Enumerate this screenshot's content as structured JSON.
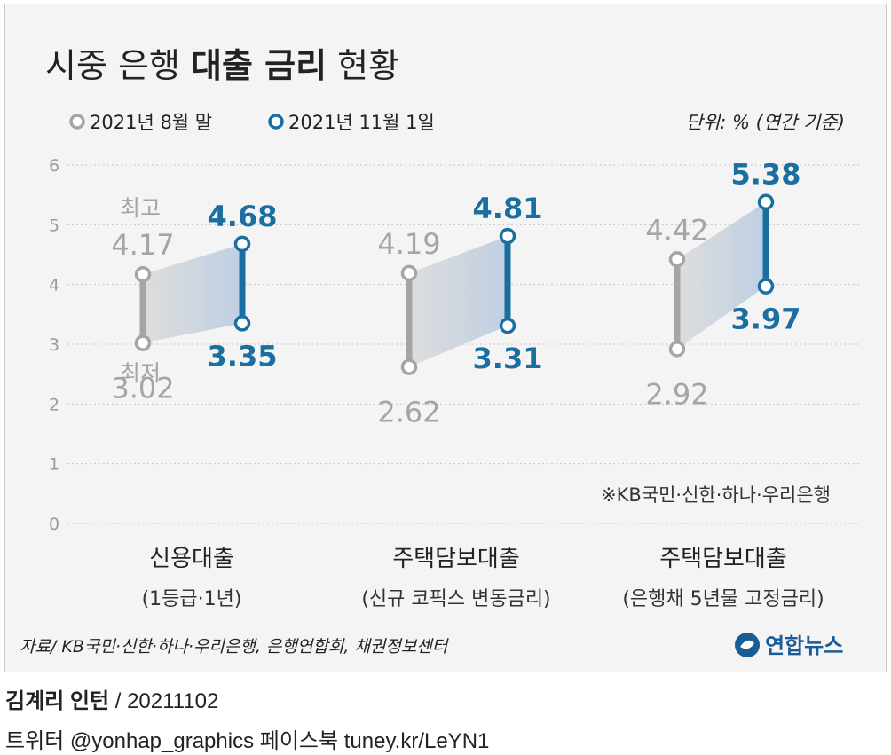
{
  "title": {
    "part1": "시중 은행 ",
    "part2": "대출 금리",
    "part3": " 현황"
  },
  "legend": [
    {
      "label": "2021년 8월 말",
      "color": "#a5a5a5"
    },
    {
      "label": "2021년 11월 1일",
      "color": "#1a6ea0"
    }
  ],
  "unit": "단위: % (연간 기준)",
  "labels": {
    "max": "최고",
    "min": "최저"
  },
  "note": "※KB국민·신한·하나·우리은행",
  "source": "자료/ KB국민·신한·하나·우리은행, 은행연합회, 채권정보센터",
  "logo": {
    "text": "연합뉴스",
    "color": "#1a5d94"
  },
  "footer": {
    "credit_name": "김계리 인턴",
    "credit_date": " / 20211102",
    "social": "트위터 @yonhap_graphics  페이스북 tuney.kr/LeYN1"
  },
  "chart_data": {
    "type": "range",
    "title": "시중 은행 대출 금리 현황",
    "ylabel": "단위: % (연간 기준)",
    "ylim": [
      0,
      6
    ],
    "yticks": [
      "0",
      "1",
      "2",
      "3",
      "4",
      "5",
      "6"
    ],
    "categories": [
      {
        "name": "신용대출",
        "sub": "(1등급·1년)"
      },
      {
        "name": "주택담보대출",
        "sub": "(신규 코픽스 변동금리)"
      },
      {
        "name": "주택담보대출",
        "sub": "(은행채 5년물 고정금리)"
      }
    ],
    "series": [
      {
        "name": "2021년 8월 말",
        "color": "#a5a5a5",
        "high": [
          4.17,
          4.19,
          4.42
        ],
        "low": [
          3.02,
          2.62,
          2.92
        ],
        "high_labels": [
          "4.17",
          "4.19",
          "4.42"
        ],
        "low_labels": [
          "3.02",
          "2.62",
          "2.92"
        ]
      },
      {
        "name": "2021년 11월 1일",
        "color": "#1a6ea0",
        "high": [
          4.68,
          4.81,
          5.38
        ],
        "low": [
          3.35,
          3.31,
          3.97
        ],
        "high_labels": [
          "4.68",
          "4.81",
          "5.38"
        ],
        "low_labels": [
          "3.35",
          "3.31",
          "3.97"
        ]
      }
    ],
    "grid": true,
    "legend_position": "top-left"
  }
}
